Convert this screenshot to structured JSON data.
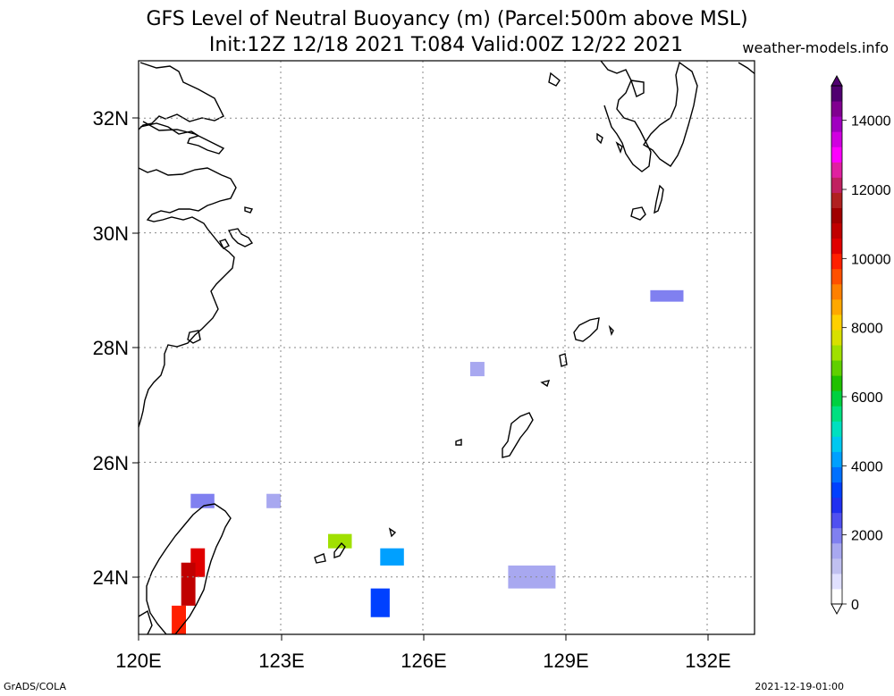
{
  "title": {
    "line1": "GFS Level of Neutral Buoyancy (m) (Parcel:500m above MSL)",
    "line2": "Init:12Z 12/18 2021 T:084 Valid:00Z 12/22 2021"
  },
  "credit": "weather-models.info",
  "footer": {
    "left": "GrADS/COLA",
    "right": "2021-12-19-01:00"
  },
  "map": {
    "extent": {
      "lon": [
        120,
        133
      ],
      "lat": [
        23,
        33
      ]
    },
    "lon_labels": [
      "120E",
      "123E",
      "126E",
      "129E",
      "132E"
    ],
    "lat_labels": [
      "24N",
      "26N",
      "28N",
      "30N",
      "32N"
    ],
    "grid": true
  },
  "colorbar": {
    "labels": [
      "0",
      "2000",
      "4000",
      "6000",
      "8000",
      "10000",
      "12000",
      "14000"
    ],
    "colors": [
      "#ffffff",
      "#e0e0ff",
      "#c0c0f0",
      "#a8a8f0",
      "#8080f0",
      "#5050f0",
      "#2030f0",
      "#0040ff",
      "#0070ff",
      "#00a0ff",
      "#00c8f0",
      "#00e0c0",
      "#00e080",
      "#00d040",
      "#20c000",
      "#60d000",
      "#a0e000",
      "#d8e000",
      "#ffd000",
      "#ffa800",
      "#ff8000",
      "#ff5000",
      "#ff2000",
      "#e00000",
      "#c00000",
      "#a00000",
      "#b02020",
      "#c02060",
      "#e020a0",
      "#ff00ff",
      "#d000e0",
      "#a000c0",
      "#800090",
      "#500070"
    ]
  },
  "lnb_patches": [
    {
      "lon": [
        121.1,
        121.6
      ],
      "lat": [
        25.2,
        25.45
      ],
      "value_m": 1800
    },
    {
      "lon": [
        122.7,
        123.0
      ],
      "lat": [
        25.2,
        25.45
      ],
      "value_m": 1500
    },
    {
      "lon": [
        124.0,
        124.5
      ],
      "lat": [
        24.5,
        24.75
      ],
      "value_m": 7200
    },
    {
      "lon": [
        125.1,
        125.6
      ],
      "lat": [
        24.2,
        24.5
      ],
      "value_m": 4300
    },
    {
      "lon": [
        124.9,
        125.3
      ],
      "lat": [
        23.3,
        23.8
      ],
      "value_m": 3200
    },
    {
      "lon": [
        127.0,
        127.3
      ],
      "lat": [
        27.5,
        27.75
      ],
      "value_m": 1600
    },
    {
      "lon": [
        127.8,
        128.8
      ],
      "lat": [
        23.8,
        24.2
      ],
      "value_m": 1700
    },
    {
      "lon": [
        130.8,
        131.5
      ],
      "lat": [
        28.8,
        29.0
      ],
      "value_m": 1900
    },
    {
      "lon": [
        121.1,
        121.4
      ],
      "lat": [
        24.0,
        24.5
      ],
      "value_m": 10500
    },
    {
      "lon": [
        120.9,
        121.2
      ],
      "lat": [
        23.5,
        24.25
      ],
      "value_m": 10800
    },
    {
      "lon": [
        120.7,
        121.0
      ],
      "lat": [
        23.0,
        23.5
      ],
      "value_m": 10000
    }
  ]
}
